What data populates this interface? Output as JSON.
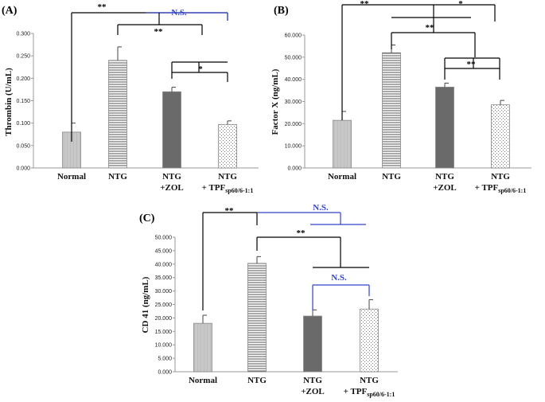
{
  "colors": {
    "black": "#000000",
    "blue": "#3344cc"
  },
  "chart_data": [
    {
      "panel": "(A)",
      "type": "bar",
      "ylabel": "Thrombin (U/mL)",
      "ylim": [
        0,
        0.3
      ],
      "yticks": [
        "0.000",
        "0.050",
        "0.100",
        "0.150",
        "0.200",
        "0.250",
        "0.300"
      ],
      "categories": [
        {
          "line1": "Normal",
          "line2": "",
          "sub": "",
          "after": ""
        },
        {
          "line1": "NTG",
          "line2": "",
          "sub": "",
          "after": ""
        },
        {
          "line1": "NTG",
          "line2": "+ZOL",
          "sub": "",
          "after": ""
        },
        {
          "line1": "NTG",
          "line2": "+ TPF",
          "sub": "sp60/6-1:1",
          "after": ""
        }
      ],
      "values": [
        0.08,
        0.24,
        0.17,
        0.097
      ],
      "errors": [
        0.02,
        0.03,
        0.01,
        0.008
      ],
      "significance": [
        {
          "text": "**",
          "color": "black"
        },
        {
          "text": "N.S.",
          "color": "blue"
        },
        {
          "text": "**",
          "color": "black"
        },
        {
          "text": "*",
          "color": "black"
        }
      ]
    },
    {
      "panel": "(B)",
      "type": "bar",
      "ylabel": "Factor X (ng/mL)",
      "ylim": [
        0,
        60
      ],
      "yticks": [
        "0.000",
        "10.000",
        "20.000",
        "30.000",
        "40.000",
        "50.000",
        "60.000"
      ],
      "categories": [
        {
          "line1": "Normal",
          "line2": "",
          "sub": "",
          "after": ""
        },
        {
          "line1": "NTG",
          "line2": "",
          "sub": "",
          "after": ""
        },
        {
          "line1": "NTG",
          "line2": "+ZOL",
          "sub": "",
          "after": ""
        },
        {
          "line1": "NTG",
          "line2": "+ TPF",
          "sub": "sp60/6-1:1",
          "after": ""
        }
      ],
      "values": [
        21.5,
        52.0,
        36.5,
        28.5
      ],
      "errors": [
        4.0,
        3.5,
        1.8,
        2.0
      ],
      "significance": [
        {
          "text": "**",
          "color": "black"
        },
        {
          "text": "*",
          "color": "black"
        },
        {
          "text": "**",
          "color": "black"
        },
        {
          "text": "**",
          "color": "black"
        }
      ]
    },
    {
      "panel": "(C)",
      "type": "bar",
      "ylabel": "CD 41 (ng/mL)",
      "ylim": [
        0,
        50
      ],
      "yticks": [
        "0.000",
        "5.000",
        "10.000",
        "15.000",
        "20.000",
        "25.000",
        "30.000",
        "35.000",
        "40.000",
        "45.000",
        "50.000"
      ],
      "categories": [
        {
          "line1": "Normal",
          "line2": "",
          "sub": "",
          "after": ""
        },
        {
          "line1": "NTG",
          "line2": "",
          "sub": "",
          "after": ""
        },
        {
          "line1": "NTG",
          "line2": "+ZOL",
          "sub": "",
          "after": ""
        },
        {
          "line1": "NTG",
          "line2": "+ TPF",
          "sub": "sp60/6-1:1",
          "after": ""
        }
      ],
      "values": [
        18.0,
        40.3,
        20.7,
        23.3
      ],
      "errors": [
        3.0,
        2.5,
        2.3,
        3.5
      ],
      "significance": [
        {
          "text": "**",
          "color": "black"
        },
        {
          "text": "N.S.",
          "color": "blue"
        },
        {
          "text": "**",
          "color": "black"
        },
        {
          "text": "N.S.",
          "color": "blue"
        }
      ]
    }
  ]
}
